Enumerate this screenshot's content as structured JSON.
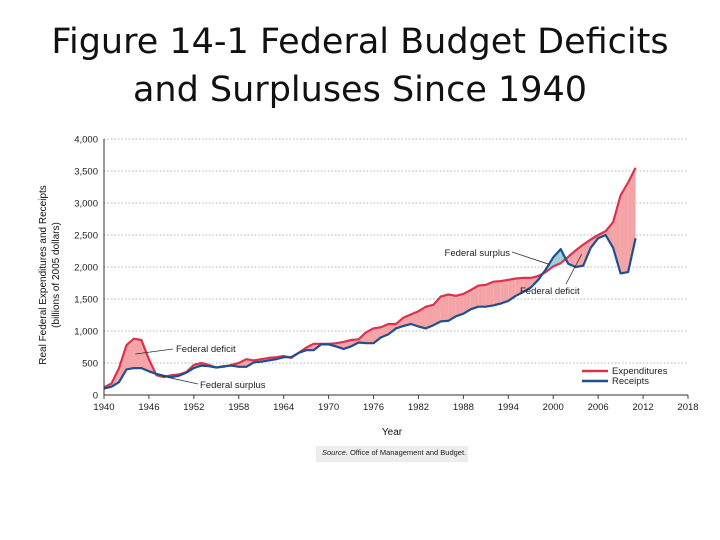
{
  "title": {
    "line1": "Figure 14-1 Federal Budget Deficits",
    "line2": "and Surpluses Since 1940"
  },
  "source": {
    "label": "Source.",
    "text": "Office of Management and Budget."
  },
  "colors": {
    "expenditures": "#d9344f",
    "receipts": "#1f4f8f",
    "deficit_fill": "#f4a3a6",
    "surplus_fill": "#9ccfd8"
  },
  "chart_data": {
    "type": "line",
    "title": "",
    "xlabel": "Year",
    "ylabel": "Real Federal Expenditures and Receipts",
    "ylabel2": "(billions of 2005 dollars)",
    "xlim": [
      1940,
      2018
    ],
    "ylim": [
      0,
      4000
    ],
    "xticks": [
      "1940",
      "1946",
      "1952",
      "1958",
      "1964",
      "1970",
      "1976",
      "1982",
      "1988",
      "1994",
      "2000",
      "2006",
      "2012",
      "2018"
    ],
    "yticks": [
      "0",
      "500",
      "1,000",
      "1,500",
      "2,000",
      "2,500",
      "3,000",
      "3,500",
      "4,000"
    ],
    "grid": true,
    "legend_position": "bottom-right",
    "series": [
      {
        "name": "Expenditures",
        "x": [
          1940,
          1941,
          1942,
          1943,
          1944,
          1945,
          1946,
          1947,
          1948,
          1949,
          1950,
          1951,
          1952,
          1953,
          1954,
          1955,
          1956,
          1957,
          1958,
          1959,
          1960,
          1961,
          1962,
          1963,
          1964,
          1965,
          1966,
          1967,
          1968,
          1969,
          1970,
          1971,
          1972,
          1973,
          1974,
          1975,
          1976,
          1977,
          1978,
          1979,
          1980,
          1981,
          1982,
          1983,
          1984,
          1985,
          1986,
          1987,
          1988,
          1989,
          1990,
          1991,
          1992,
          1993,
          1994,
          1995,
          1996,
          1997,
          1998,
          1999,
          2000,
          2001,
          2002,
          2003,
          2004,
          2005,
          2006,
          2007,
          2008,
          2009,
          2010,
          2011
        ],
        "values": [
          120,
          180,
          420,
          780,
          880,
          860,
          560,
          310,
          280,
          310,
          320,
          360,
          470,
          500,
          470,
          430,
          440,
          470,
          500,
          560,
          540,
          560,
          580,
          590,
          610,
          580,
          660,
          740,
          800,
          800,
          800,
          810,
          830,
          860,
          870,
          980,
          1040,
          1060,
          1110,
          1110,
          1210,
          1260,
          1310,
          1380,
          1410,
          1540,
          1570,
          1550,
          1580,
          1640,
          1710,
          1720,
          1770,
          1780,
          1800,
          1820,
          1830,
          1830,
          1860,
          1920,
          2010,
          2060,
          2160,
          2260,
          2350,
          2430,
          2500,
          2560,
          2700,
          3120,
          3320,
          3550
        ]
      },
      {
        "name": "Receipts",
        "x": [
          1940,
          1941,
          1942,
          1943,
          1944,
          1945,
          1946,
          1947,
          1948,
          1949,
          1950,
          1951,
          1952,
          1953,
          1954,
          1955,
          1956,
          1957,
          1958,
          1959,
          1960,
          1961,
          1962,
          1963,
          1964,
          1965,
          1966,
          1967,
          1968,
          1969,
          1970,
          1971,
          1972,
          1973,
          1974,
          1975,
          1976,
          1977,
          1978,
          1979,
          1980,
          1981,
          1982,
          1983,
          1984,
          1985,
          1986,
          1987,
          1988,
          1989,
          1990,
          1991,
          1992,
          1993,
          1994,
          1995,
          1996,
          1997,
          1998,
          1999,
          2000,
          2001,
          2002,
          2003,
          2004,
          2005,
          2006,
          2007,
          2008,
          2009,
          2010,
          2011
        ],
        "values": [
          100,
          130,
          200,
          400,
          420,
          420,
          370,
          330,
          300,
          280,
          300,
          350,
          420,
          460,
          450,
          430,
          450,
          460,
          440,
          440,
          510,
          520,
          540,
          560,
          590,
          590,
          660,
          700,
          700,
          790,
          790,
          760,
          720,
          760,
          820,
          810,
          810,
          900,
          950,
          1040,
          1080,
          1110,
          1070,
          1040,
          1090,
          1150,
          1160,
          1230,
          1270,
          1340,
          1380,
          1380,
          1400,
          1430,
          1470,
          1550,
          1610,
          1680,
          1800,
          1960,
          2150,
          2280,
          2050,
          2000,
          2020,
          2300,
          2450,
          2500,
          2300,
          1900,
          1920,
          2450
        ]
      }
    ],
    "annotations": [
      {
        "label": "Federal deficit",
        "year": 1944
      },
      {
        "label": "Federal surplus",
        "year": 1948
      },
      {
        "label": "Federal surplus",
        "year": 1999
      },
      {
        "label": "Federal deficit",
        "year": 2003
      }
    ]
  }
}
